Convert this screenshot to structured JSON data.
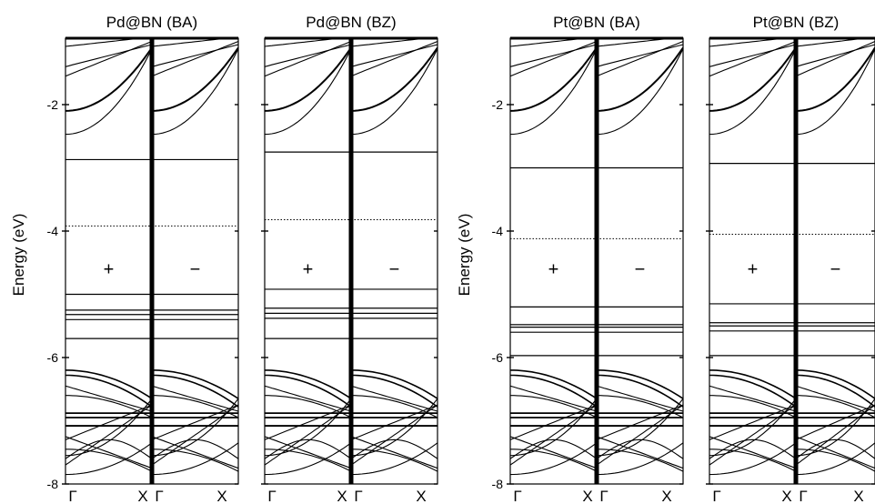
{
  "chart_data": [
    {
      "type": "line",
      "title": "Pd@BN (BA)",
      "ylabel": "Energy (eV)",
      "ylim": [
        -8.0,
        -0.95
      ],
      "yticks": [
        "-2",
        "-4",
        "-6",
        "-8"
      ],
      "kpoints": [
        "Γ",
        "X"
      ],
      "spin_labels": [
        "+",
        "−"
      ],
      "defect_levels": [
        -2.87,
        -5.0,
        -5.25,
        -5.32,
        -5.4,
        -5.7
      ],
      "fermi_level": -3.92,
      "valence_top": -6.2,
      "conduction_bottom": -2.47
    },
    {
      "type": "line",
      "title": "Pd@BN (BZ)",
      "ylabel": "",
      "ylim": [
        -8.0,
        -0.95
      ],
      "yticks": [],
      "kpoints": [
        "Γ",
        "X"
      ],
      "spin_labels": [
        "+",
        "−"
      ],
      "defect_levels": [
        -2.75,
        -4.92,
        -5.22,
        -5.3,
        -5.38,
        -5.7
      ],
      "fermi_level": -3.82,
      "valence_top": -6.2,
      "conduction_bottom": -2.47
    },
    {
      "type": "line",
      "title": "Pt@BN (BA)",
      "ylabel": "Energy (eV)",
      "ylim": [
        -8.0,
        -0.95
      ],
      "yticks": [
        "-2",
        "-4",
        "-6",
        "-8"
      ],
      "kpoints": [
        "Γ",
        "X"
      ],
      "spin_labels": [
        "+",
        "−"
      ],
      "defect_levels": [
        -3.0,
        -5.2,
        -5.48,
        -5.52,
        -5.6,
        -5.97
      ],
      "fermi_level": -4.12,
      "valence_top": -6.2,
      "conduction_bottom": -2.47
    },
    {
      "type": "line",
      "title": "Pt@BN (BZ)",
      "ylabel": "",
      "ylim": [
        -8.0,
        -0.95
      ],
      "yticks": [],
      "kpoints": [
        "Γ",
        "X"
      ],
      "spin_labels": [
        "+",
        "−"
      ],
      "defect_levels": [
        -2.93,
        -5.15,
        -5.45,
        -5.5,
        -5.58,
        -5.97
      ],
      "fermi_level": -4.05,
      "valence_top": -6.2,
      "conduction_bottom": -2.47
    }
  ]
}
